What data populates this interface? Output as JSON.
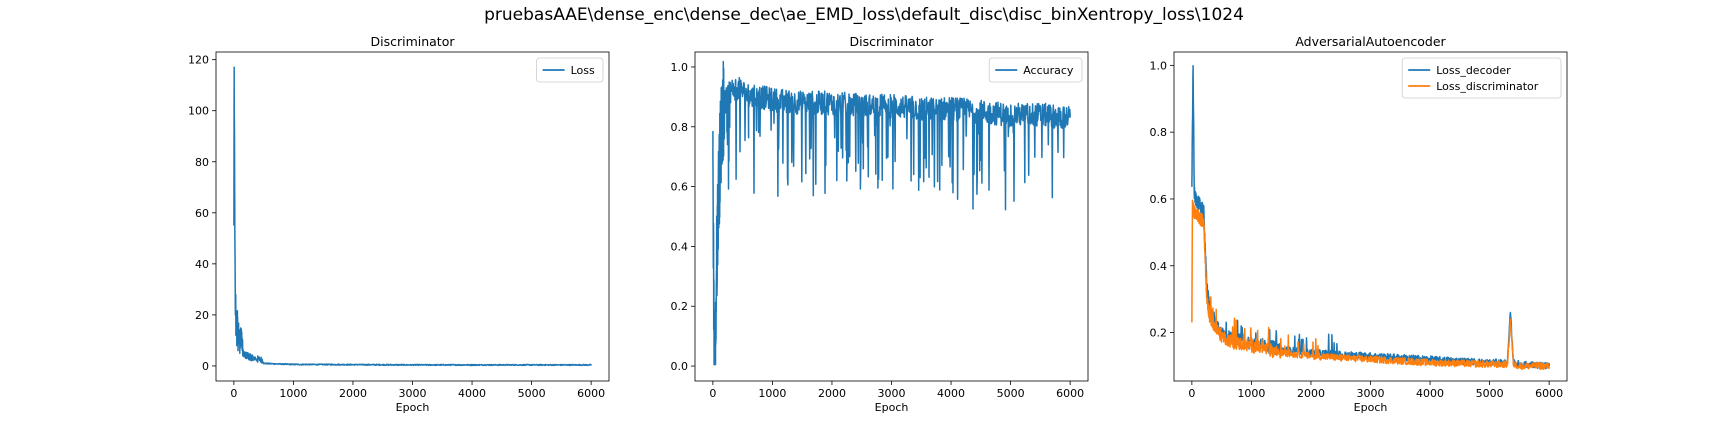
{
  "figure": {
    "suptitle": "pruebasAAE\\dense_enc\\dense_dec\\ae_EMD_loss\\default_disc\\disc_binXentropy_loss\\1024"
  },
  "colors": {
    "blue": "#1f77b4",
    "orange": "#ff7f0e"
  },
  "chart_data": [
    {
      "type": "line",
      "title": "Discriminator",
      "xlabel": "Epoch",
      "ylabel": "",
      "xlim": [
        -300,
        6300
      ],
      "ylim": [
        -5.9,
        123
      ],
      "xticks": [
        0,
        1000,
        2000,
        3000,
        4000,
        5000,
        6000
      ],
      "yticks": [
        0,
        20,
        40,
        60,
        80,
        100,
        120
      ],
      "grid": false,
      "legend": "top-right",
      "series": [
        {
          "name": "Loss",
          "color": "#1f77b4",
          "shape": "spike-decay",
          "x": [
            0,
            5,
            10,
            15,
            20,
            25,
            30,
            35,
            40,
            50,
            60,
            70,
            80,
            100,
            120,
            150,
            200,
            250,
            300,
            400,
            500,
            700,
            1000,
            2000,
            3000,
            4000,
            5000,
            6000
          ],
          "y": [
            55,
            117,
            90,
            61,
            40,
            20,
            28,
            12,
            18,
            8,
            15,
            6,
            10,
            5,
            8,
            4,
            3,
            2.5,
            2,
            1.5,
            1,
            0.8,
            0.6,
            0.5,
            0.4,
            0.4,
            0.4,
            0.4
          ]
        }
      ]
    },
    {
      "type": "line",
      "title": "Discriminator",
      "xlabel": "Epoch",
      "ylabel": "",
      "xlim": [
        -300,
        6300
      ],
      "ylim": [
        -0.05,
        1.05
      ],
      "xticks": [
        0,
        1000,
        2000,
        3000,
        4000,
        5000,
        6000
      ],
      "yticks": [
        0.0,
        0.2,
        0.4,
        0.6,
        0.8,
        1.0
      ],
      "grid": false,
      "legend": "top-right",
      "series": [
        {
          "name": "Accuracy",
          "color": "#1f77b4",
          "shape": "noisy-rise",
          "x": [
            0,
            20,
            40,
            60,
            80,
            100,
            130,
            160,
            200,
            250,
            300,
            400,
            500,
            600,
            800,
            1000,
            1500,
            2000,
            2500,
            3000,
            3500,
            4000,
            4500,
            5000,
            5500,
            6000
          ],
          "y": [
            0.7,
            0.1,
            0.02,
            0.3,
            0.5,
            0.6,
            0.75,
            0.85,
            0.88,
            0.9,
            0.92,
            0.93,
            0.92,
            0.9,
            0.9,
            0.89,
            0.88,
            0.88,
            0.87,
            0.87,
            0.86,
            0.86,
            0.85,
            0.84,
            0.84,
            0.83
          ]
        }
      ]
    },
    {
      "type": "line",
      "title": "AdversarialAutoencoder",
      "xlabel": "Epoch",
      "ylabel": "",
      "xlim": [
        -300,
        6300
      ],
      "ylim": [
        0.055,
        1.04
      ],
      "xticks": [
        0,
        1000,
        2000,
        3000,
        4000,
        5000,
        6000
      ],
      "yticks": [
        0.2,
        0.4,
        0.6,
        0.8,
        1.0
      ],
      "grid": false,
      "legend": "top-right",
      "series": [
        {
          "name": "Loss_decoder",
          "color": "#1f77b4",
          "shape": "step-decay",
          "x": [
            0,
            20,
            40,
            60,
            100,
            150,
            200,
            250,
            300,
            400,
            500,
            700,
            1000,
            1500,
            2000,
            2500,
            3000,
            3500,
            4000,
            4500,
            5000,
            5300,
            5350,
            5400,
            5500,
            6000
          ],
          "y": [
            0.65,
            0.99,
            0.62,
            0.6,
            0.59,
            0.58,
            0.56,
            0.34,
            0.27,
            0.23,
            0.2,
            0.18,
            0.17,
            0.15,
            0.14,
            0.135,
            0.13,
            0.125,
            0.12,
            0.115,
            0.11,
            0.11,
            0.26,
            0.11,
            0.105,
            0.1
          ]
        },
        {
          "name": "Loss_discriminator",
          "color": "#ff7f0e",
          "shape": "step-decay",
          "x": [
            0,
            10,
            20,
            40,
            60,
            100,
            150,
            200,
            250,
            300,
            400,
            500,
            700,
            1000,
            1500,
            2000,
            2500,
            3000,
            3500,
            4000,
            4500,
            5000,
            5300,
            5350,
            5400,
            5500,
            6000
          ],
          "y": [
            0.25,
            0.58,
            0.57,
            0.56,
            0.56,
            0.55,
            0.54,
            0.53,
            0.3,
            0.25,
            0.21,
            0.19,
            0.17,
            0.16,
            0.14,
            0.13,
            0.125,
            0.12,
            0.115,
            0.11,
            0.108,
            0.105,
            0.105,
            0.24,
            0.105,
            0.1,
            0.1
          ]
        }
      ]
    }
  ]
}
